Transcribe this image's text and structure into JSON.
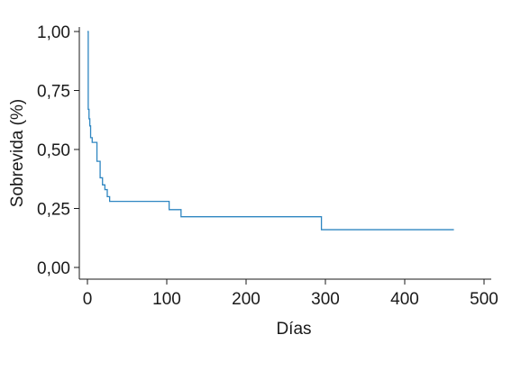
{
  "chart_data": {
    "type": "line",
    "title": "",
    "xlabel": "Días",
    "ylabel": "Sobrevida (%)",
    "xlim": [
      0,
      500
    ],
    "ylim": [
      0,
      1
    ],
    "x_ticks": [
      0,
      100,
      200,
      300,
      400,
      500
    ],
    "x_tick_labels": [
      "0",
      "100",
      "200",
      "300",
      "400",
      "500"
    ],
    "y_ticks": [
      0,
      0.25,
      0.5,
      0.75,
      1.0
    ],
    "y_tick_labels": [
      "0,00",
      "0,25",
      "0,50",
      "0,75",
      "1,00"
    ],
    "grid": false,
    "legend": "none",
    "line_color": "#2e86c1",
    "series": [
      {
        "step": "post",
        "x": [
          0,
          1,
          2,
          3,
          4,
          6,
          7,
          12,
          16,
          19,
          22,
          25,
          28,
          31,
          103,
          118,
          295,
          462
        ],
        "values": [
          1.0,
          0.67,
          0.63,
          0.6,
          0.55,
          0.53,
          0.53,
          0.45,
          0.38,
          0.35,
          0.33,
          0.3,
          0.28,
          0.28,
          0.245,
          0.215,
          0.16,
          0.16
        ]
      }
    ]
  }
}
